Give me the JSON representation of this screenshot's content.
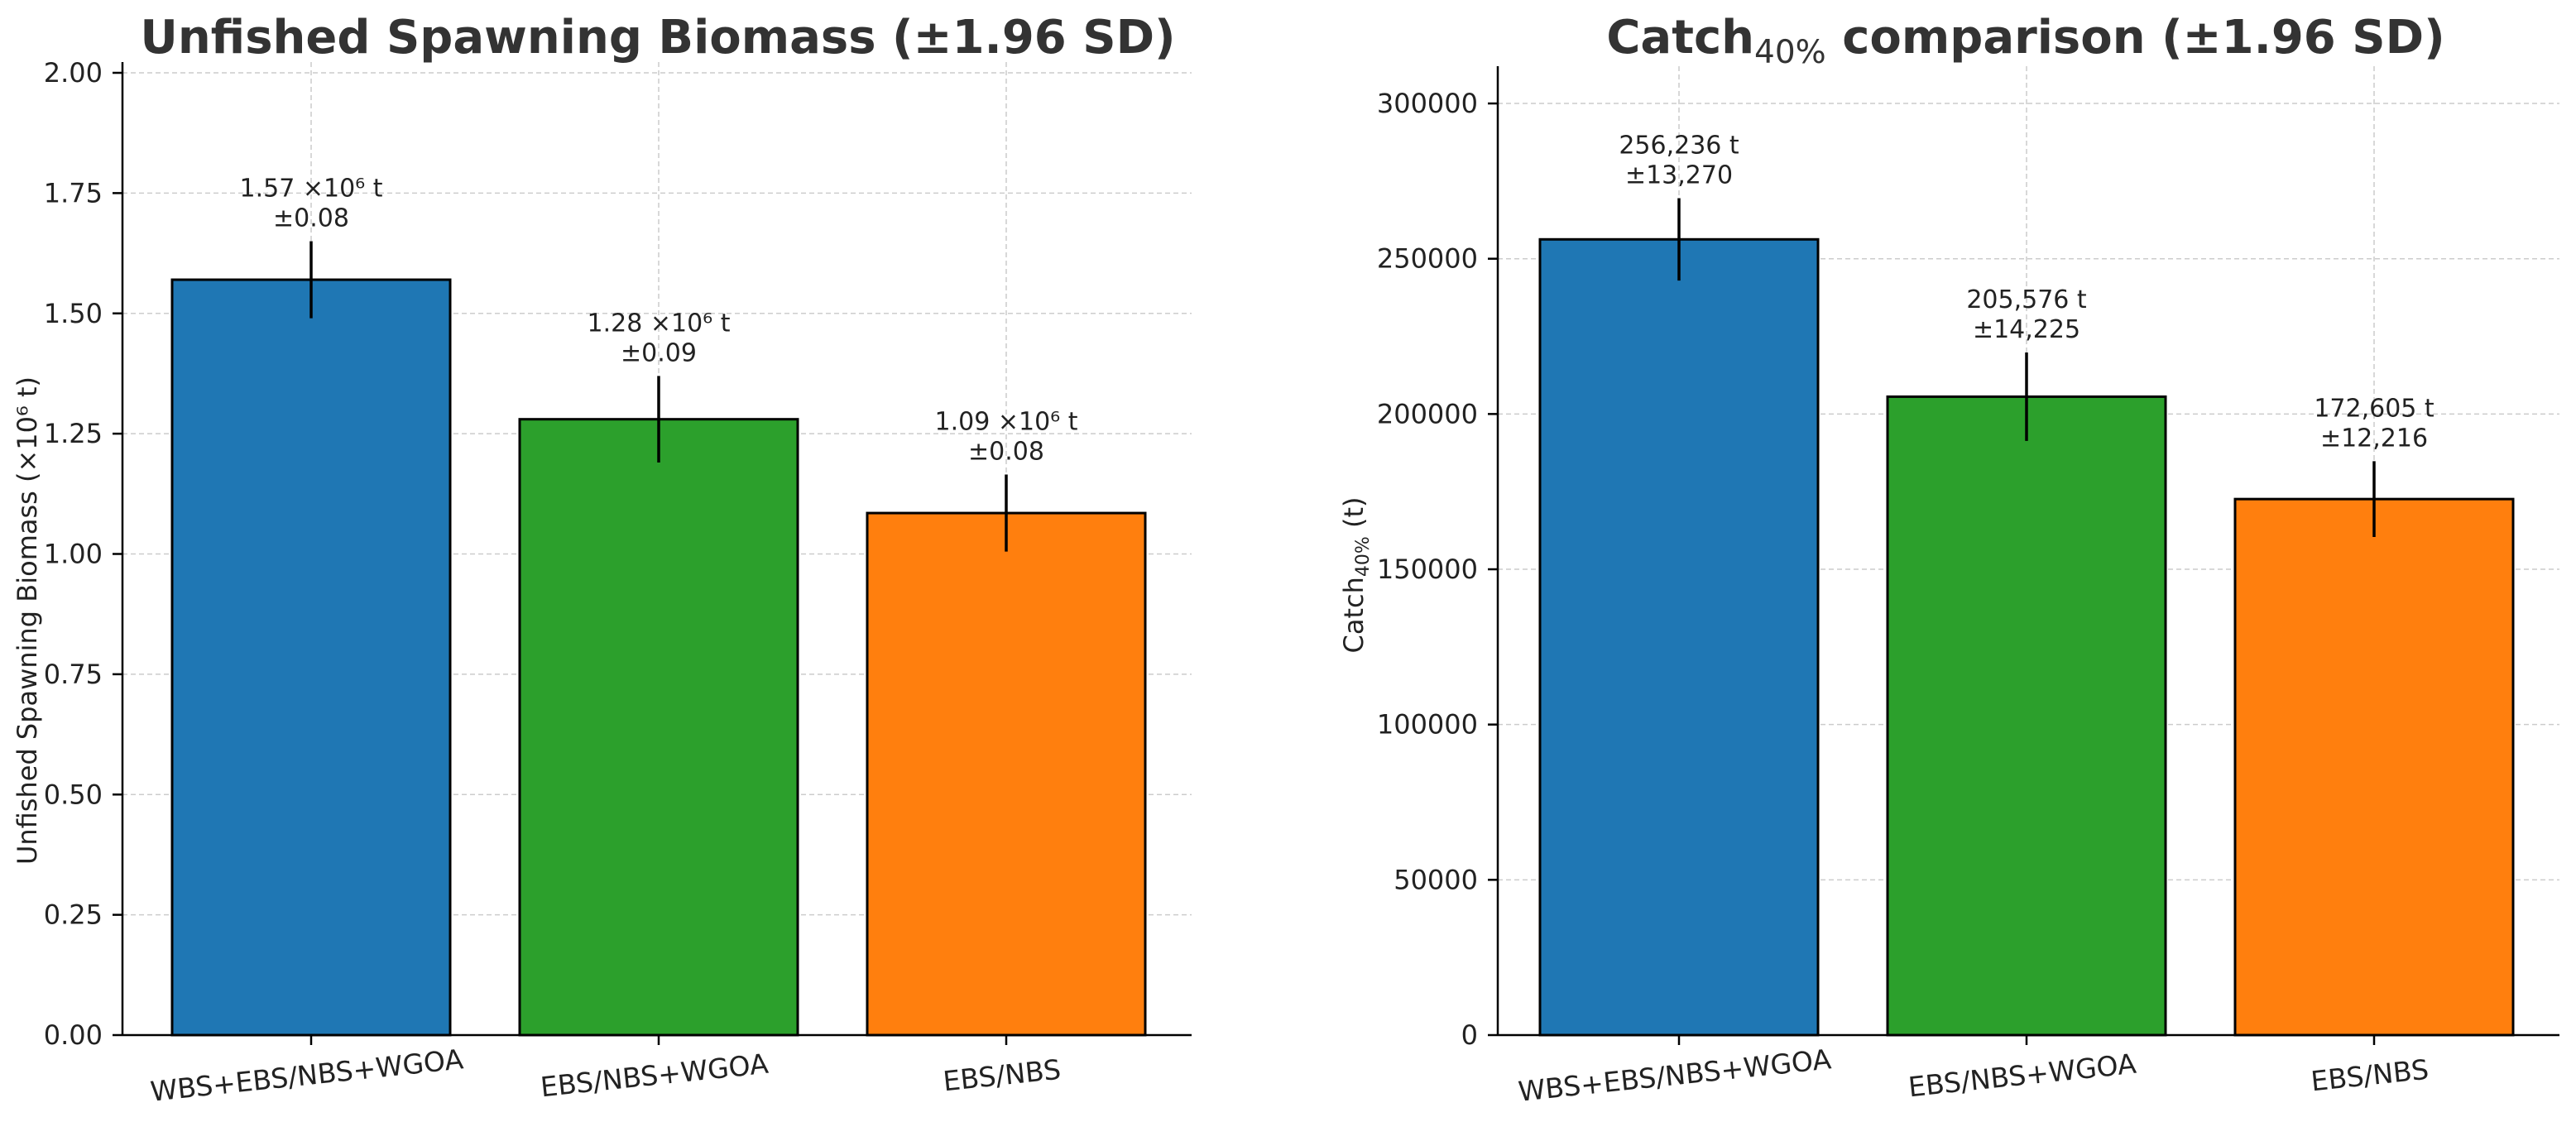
{
  "chart_data": [
    {
      "type": "bar",
      "title": "Unfished Spawning Biomass (±1.96 SD)",
      "title_sub": "",
      "title_tail": "",
      "ylabel": "Unfished Spawning Biomass (×10⁶ t)",
      "ylabel_sub": "",
      "ylabel_tail": "",
      "ylim": [
        0,
        2.0
      ],
      "yticks": [
        "0.00",
        "0.25",
        "0.50",
        "0.75",
        "1.00",
        "1.25",
        "1.50",
        "1.75",
        "2.00"
      ],
      "categories": [
        "WBS+EBS/NBS+WGOA",
        "EBS/NBS+WGOA",
        "EBS/NBS"
      ],
      "values": [
        1.57,
        1.28,
        1.085
      ],
      "errors": [
        0.08,
        0.09,
        0.08
      ],
      "colors": [
        "#1f77b4",
        "#2ca02c",
        "#ff7f0e"
      ],
      "annotations": [
        {
          "line1": "1.57 ×10⁶ t",
          "line2": "±0.08"
        },
        {
          "line1": "1.28 ×10⁶ t",
          "line2": "±0.09"
        },
        {
          "line1": "1.09 ×10⁶ t",
          "line2": "±0.08"
        }
      ],
      "grid": true
    },
    {
      "type": "bar",
      "title": "Catch",
      "title_sub": "40%",
      "title_tail": " comparison (±1.96 SD)",
      "ylabel": "Catch",
      "ylabel_sub": "40%",
      "ylabel_tail": " (t)",
      "ylim": [
        0,
        312000
      ],
      "yticks": [
        "0",
        "50000",
        "100000",
        "150000",
        "200000",
        "250000",
        "300000"
      ],
      "categories": [
        "WBS+EBS/NBS+WGOA",
        "EBS/NBS+WGOA",
        "EBS/NBS"
      ],
      "values": [
        256236,
        205576,
        172605
      ],
      "errors": [
        13270,
        14225,
        12216
      ],
      "colors": [
        "#1f77b4",
        "#2ca02c",
        "#ff7f0e"
      ],
      "annotations": [
        {
          "line1": "256,236 t",
          "line2": "±13,270"
        },
        {
          "line1": "205,576 t",
          "line2": "±14,225"
        },
        {
          "line1": "172,605 t",
          "line2": "±12,216"
        }
      ],
      "grid": true
    }
  ]
}
